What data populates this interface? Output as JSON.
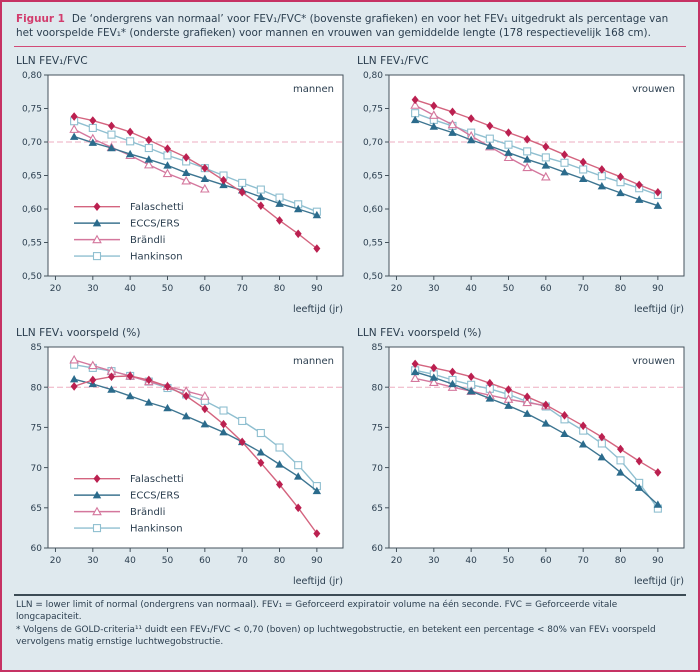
{
  "figure": {
    "label": "Figuur 1",
    "caption": "De ‘ondergrens van normaal’ voor FEV₁/FVC* (bovenste grafieken) en voor het FEV₁ uitgedrukt als percentage van het voorspelde FEV₁* (onderste grafieken) voor mannen en vrouwen van gemiddelde lengte (178 respectievelijk 168 cm).",
    "footnote_line1": "LLN = lower limit of normal (ondergrens van normaal). FEV₁ = Geforceerd expiratoir volume na één seconde. FVC = Geforceerde vitale longcapaciteit.",
    "footnote_line2": "* Volgens de GOLD-criteria¹¹ duidt een FEV₁/FVC < 0,70 (boven) op luchtwegobstructie, en betekent een percentage < 80% van FEV₁ voorspeld vervolgens matig ernstige luchtwegobstructie."
  },
  "colors": {
    "panel_border": "#c63264",
    "panel_background": "#dfe9ee",
    "accent_pink": "#d23c6d",
    "text": "#2b3e4f",
    "axis": "#44525c",
    "threshold_line": "#edaec0",
    "footnote_rule": "#3c4b55",
    "falaschetti": "#bb2050",
    "eccs_ers": "#2b6b8c",
    "brandli": "#d4779d",
    "hankinson": "#8fbfd0"
  },
  "chart_data": [
    {
      "type": "line",
      "title": "LLN FEV₁/FVC",
      "corner_label": "mannen",
      "xlabel": "leeftijd (jr)",
      "x": [
        25,
        30,
        35,
        40,
        45,
        50,
        55,
        60,
        65,
        70,
        75,
        80,
        85,
        90
      ],
      "xlim": [
        18,
        97
      ],
      "ylim": [
        0.5,
        0.8
      ],
      "xticks": [
        20,
        30,
        40,
        50,
        60,
        70,
        80,
        90
      ],
      "yticks": [
        {
          "value": 0.8,
          "label": "0,80"
        },
        {
          "value": 0.75,
          "label": "0,75"
        },
        {
          "value": 0.7,
          "label": "0,70"
        },
        {
          "value": 0.65,
          "label": "0,65"
        },
        {
          "value": 0.6,
          "label": "0,60"
        },
        {
          "value": 0.55,
          "label": "0,55"
        },
        {
          "value": 0.5,
          "label": "0,50"
        }
      ],
      "threshold": 0.7,
      "legend": true,
      "series": [
        {
          "name": "Falaschetti",
          "marker": "diamond",
          "color": "#bb2050",
          "line_color": "#d4647f",
          "values": [
            0.738,
            0.732,
            0.724,
            0.715,
            0.703,
            0.69,
            0.677,
            0.661,
            0.643,
            0.625,
            0.605,
            0.583,
            0.563,
            0.541
          ]
        },
        {
          "name": "ECCS/ERS",
          "marker": "triangle",
          "color": "#2b6b8c",
          "line_color": "#3d7591",
          "values": [
            0.708,
            0.699,
            0.691,
            0.682,
            0.674,
            0.665,
            0.654,
            0.645,
            0.636,
            0.628,
            0.618,
            0.608,
            0.6,
            0.591
          ]
        },
        {
          "name": "Brändli",
          "marker": "open-triangle",
          "color": "#d4779d",
          "line_color": "#d4779d",
          "values": [
            0.719,
            0.705,
            0.692,
            0.68,
            0.666,
            0.653,
            0.642,
            0.63
          ]
        },
        {
          "name": "Hankinson",
          "marker": "open-square",
          "color": "#8fbfd0",
          "line_color": "#8fbfd0",
          "values": [
            0.731,
            0.721,
            0.711,
            0.701,
            0.691,
            0.68,
            0.671,
            0.661,
            0.65,
            0.639,
            0.629,
            0.617,
            0.607,
            0.596
          ]
        }
      ]
    },
    {
      "type": "line",
      "title": "LLN FEV₁/FVC",
      "corner_label": "vrouwen",
      "xlabel": "leeftijd (jr)",
      "x": [
        25,
        30,
        35,
        40,
        45,
        50,
        55,
        60,
        65,
        70,
        75,
        80,
        85,
        90
      ],
      "xlim": [
        18,
        97
      ],
      "ylim": [
        0.5,
        0.8
      ],
      "xticks": [
        20,
        30,
        40,
        50,
        60,
        70,
        80,
        90
      ],
      "yticks": [
        {
          "value": 0.8,
          "label": "0,80"
        },
        {
          "value": 0.75,
          "label": "0,75"
        },
        {
          "value": 0.7,
          "label": "0,70"
        },
        {
          "value": 0.65,
          "label": "0,65"
        },
        {
          "value": 0.6,
          "label": "0,60"
        },
        {
          "value": 0.55,
          "label": "0,55"
        },
        {
          "value": 0.5,
          "label": "0,50"
        }
      ],
      "threshold": 0.7,
      "legend": false,
      "series": [
        {
          "name": "Falaschetti",
          "marker": "diamond",
          "color": "#bb2050",
          "line_color": "#d4647f",
          "values": [
            0.763,
            0.754,
            0.745,
            0.735,
            0.724,
            0.714,
            0.704,
            0.693,
            0.681,
            0.67,
            0.659,
            0.648,
            0.636,
            0.625
          ]
        },
        {
          "name": "ECCS/ERS",
          "marker": "triangle",
          "color": "#2b6b8c",
          "line_color": "#3d7591",
          "values": [
            0.733,
            0.723,
            0.714,
            0.703,
            0.694,
            0.684,
            0.674,
            0.665,
            0.655,
            0.645,
            0.634,
            0.624,
            0.614,
            0.605
          ]
        },
        {
          "name": "Brändli",
          "marker": "open-triangle",
          "color": "#d4779d",
          "line_color": "#d4779d",
          "values": [
            0.755,
            0.74,
            0.726,
            0.709,
            0.693,
            0.677,
            0.662,
            0.648
          ]
        },
        {
          "name": "Hankinson",
          "marker": "open-square",
          "color": "#8fbfd0",
          "line_color": "#8fbfd0",
          "values": [
            0.743,
            0.733,
            0.724,
            0.714,
            0.705,
            0.696,
            0.686,
            0.677,
            0.669,
            0.659,
            0.649,
            0.64,
            0.631,
            0.621
          ]
        }
      ]
    },
    {
      "type": "line",
      "title": "LLN FEV₁ voorspeld (%)",
      "corner_label": "mannen",
      "xlabel": "leeftijd (jr)",
      "x": [
        25,
        30,
        35,
        40,
        45,
        50,
        55,
        60,
        65,
        70,
        75,
        80,
        85,
        90
      ],
      "xlim": [
        18,
        97
      ],
      "ylim": [
        60,
        85
      ],
      "xticks": [
        20,
        30,
        40,
        50,
        60,
        70,
        80,
        90
      ],
      "yticks": [
        {
          "value": 85,
          "label": "85"
        },
        {
          "value": 80,
          "label": "80"
        },
        {
          "value": 75,
          "label": "75"
        },
        {
          "value": 70,
          "label": "70"
        },
        {
          "value": 65,
          "label": "65"
        },
        {
          "value": 60,
          "label": "60"
        }
      ],
      "threshold": 80,
      "legend": true,
      "series": [
        {
          "name": "Falaschetti",
          "marker": "diamond",
          "color": "#bb2050",
          "line_color": "#d4647f",
          "values": [
            80.1,
            80.9,
            81.3,
            81.4,
            80.9,
            80.1,
            78.9,
            77.3,
            75.4,
            73.2,
            70.6,
            67.9,
            65.0,
            61.8
          ]
        },
        {
          "name": "ECCS/ERS",
          "marker": "triangle",
          "color": "#2b6b8c",
          "line_color": "#3d7591",
          "values": [
            81.0,
            80.4,
            79.7,
            78.9,
            78.1,
            77.4,
            76.4,
            75.4,
            74.4,
            73.2,
            71.9,
            70.4,
            68.9,
            67.1
          ]
        },
        {
          "name": "Brändli",
          "marker": "open-triangle",
          "color": "#d4779d",
          "line_color": "#d4779d",
          "values": [
            83.4,
            82.7,
            82.0,
            81.4,
            80.7,
            80.1,
            79.5,
            78.9
          ]
        },
        {
          "name": "Hankinson",
          "marker": "open-square",
          "color": "#8fbfd0",
          "line_color": "#8fbfd0",
          "values": [
            82.8,
            82.4,
            82.0,
            81.4,
            80.7,
            79.9,
            79.1,
            78.3,
            77.1,
            75.8,
            74.3,
            72.5,
            70.3,
            67.7
          ]
        }
      ]
    },
    {
      "type": "line",
      "title": "LLN FEV₁ voorspeld (%)",
      "corner_label": "vrouwen",
      "xlabel": "leeftijd (jr)",
      "x": [
        25,
        30,
        35,
        40,
        45,
        50,
        55,
        60,
        65,
        70,
        75,
        80,
        85,
        90
      ],
      "xlim": [
        18,
        97
      ],
      "ylim": [
        60,
        85
      ],
      "xticks": [
        20,
        30,
        40,
        50,
        60,
        70,
        80,
        90
      ],
      "yticks": [
        {
          "value": 85,
          "label": "85"
        },
        {
          "value": 80,
          "label": "80"
        },
        {
          "value": 75,
          "label": "75"
        },
        {
          "value": 70,
          "label": "70"
        },
        {
          "value": 65,
          "label": "65"
        },
        {
          "value": 60,
          "label": "60"
        }
      ],
      "threshold": 80,
      "legend": false,
      "series": [
        {
          "name": "Falaschetti",
          "marker": "diamond",
          "color": "#bb2050",
          "line_color": "#d4647f",
          "values": [
            82.9,
            82.4,
            81.9,
            81.3,
            80.5,
            79.7,
            78.8,
            77.8,
            76.5,
            75.2,
            73.8,
            72.3,
            70.8,
            69.4
          ]
        },
        {
          "name": "ECCS/ERS",
          "marker": "triangle",
          "color": "#2b6b8c",
          "line_color": "#3d7591",
          "values": [
            81.9,
            81.2,
            80.4,
            79.5,
            78.6,
            77.7,
            76.7,
            75.5,
            74.2,
            72.9,
            71.3,
            69.4,
            67.5,
            65.4
          ]
        },
        {
          "name": "Brändli",
          "marker": "open-triangle",
          "color": "#d4779d",
          "line_color": "#d4779d",
          "values": [
            81.1,
            80.6,
            80.0,
            79.5,
            79.0,
            78.5,
            78.1,
            77.7
          ]
        },
        {
          "name": "Hankinson",
          "marker": "open-square",
          "color": "#8fbfd0",
          "line_color": "#8fbfd0",
          "values": [
            82.1,
            81.6,
            80.9,
            80.3,
            79.8,
            79.1,
            78.2,
            77.6,
            76.0,
            74.6,
            73.0,
            70.9,
            68.1,
            64.9
          ]
        }
      ]
    }
  ]
}
